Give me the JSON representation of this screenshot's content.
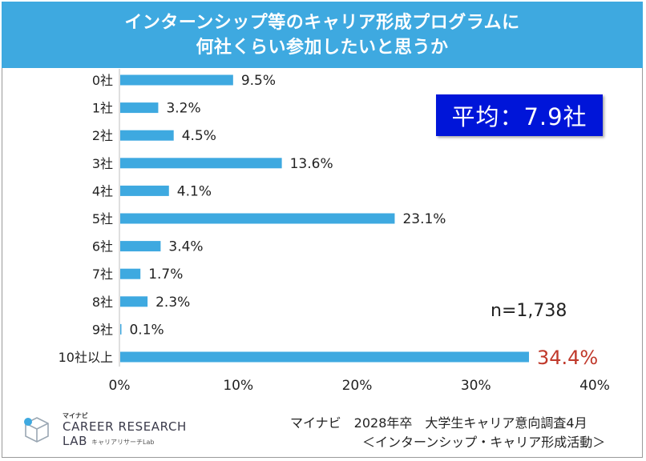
{
  "title_line1": "インターンシップ等のキャリア形成プログラムに",
  "title_line2": "何社くらい参加したいと思うか",
  "average_label": "平均：7.9社",
  "n_label": "n=1,738",
  "source_line1": "マイナビ　2028年卒　大学生キャリア意向調査4月",
  "source_line2": "＜インターンシップ・キャリア形成活動＞",
  "logo": {
    "sub": "マイナビ",
    "main1": "CAREER RESEARCH",
    "main2": "LAB",
    "jp": "キャリアリサーチLab"
  },
  "colors": {
    "bar": "#3ea9e0",
    "highlight_text": "#c0392b",
    "title_bg": "#3ea9e0",
    "avg_box": "#0015d9"
  },
  "chart_data": {
    "type": "bar",
    "orientation": "horizontal",
    "categories": [
      "0社",
      "1社",
      "2社",
      "3社",
      "4社",
      "5社",
      "6社",
      "7社",
      "8社",
      "9社",
      "10社以上"
    ],
    "values": [
      9.5,
      3.2,
      4.5,
      13.6,
      4.1,
      23.1,
      3.4,
      1.7,
      2.3,
      0.1,
      34.4
    ],
    "value_labels": [
      "9.5%",
      "3.2%",
      "4.5%",
      "13.6%",
      "4.1%",
      "23.1%",
      "3.4%",
      "1.7%",
      "2.3%",
      "0.1%",
      "34.4%"
    ],
    "highlight_index": 10,
    "xlim": [
      0,
      40
    ],
    "xticks": [
      "0%",
      "10%",
      "20%",
      "30%",
      "40%"
    ],
    "grid": false,
    "title": "インターンシップ等のキャリア形成プログラムに何社くらい参加したいと思うか"
  }
}
